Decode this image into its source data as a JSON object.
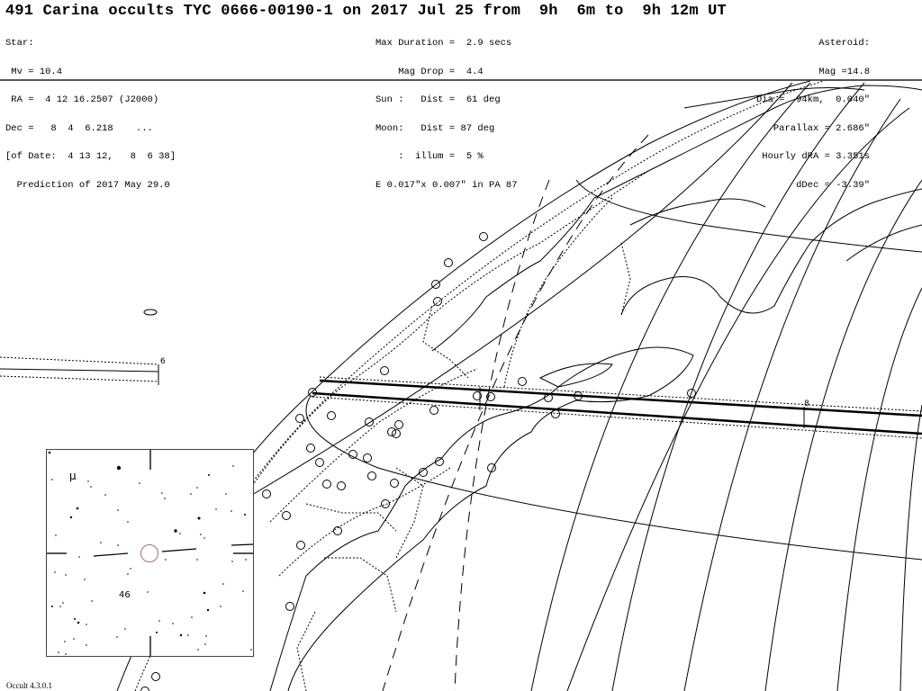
{
  "header": {
    "title": "491 Carina occults TYC 0666-00190-1 on 2017 Jul 25 from  9h  6m to  9h 12m UT"
  },
  "star": {
    "lines": [
      "Star:",
      " Mv = 10.4",
      " RA =  4 12 16.2507 (J2000)",
      "Dec =   8  4  6.218    ...",
      "[of Date:  4 13 12,   8  6 38]",
      "  Prediction of 2017 May 29.0"
    ]
  },
  "event": {
    "lines": [
      "Max Duration =  2.9 secs",
      "    Mag Drop =  4.4",
      "Sun :   Dist =  61 deg",
      "Moon:   Dist = 87 deg",
      "    :  illum =  5 %",
      "E 0.017\"x 0.007\" in PA 87"
    ]
  },
  "asteroid": {
    "lines": [
      "Asteroid:",
      "Mag =14.8",
      "Dia =  94km,  0.040\"",
      "Parallax = 2.686\"",
      "Hourly dRA = 3.351s",
      "dDec = -3.39\""
    ]
  },
  "map": {
    "time_labels": [
      "6",
      "8"
    ]
  },
  "star_chart": {
    "labels": [
      "μ",
      "46"
    ]
  },
  "footer": {
    "version": "Occult 4.3.0.1"
  }
}
